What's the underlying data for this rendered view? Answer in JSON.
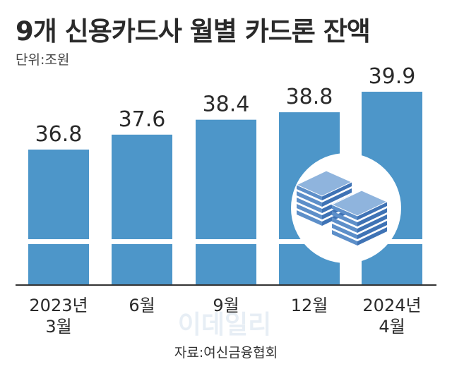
{
  "header": {
    "title": "9개 신용카드사 월별 카드론 잔액",
    "unit": "단위:조원"
  },
  "footer": {
    "source": "자료:여신금융협회",
    "watermark": "이데일리"
  },
  "colors": {
    "bar": "#4d96c9",
    "baseline": "#333333",
    "icon_circle": "#ffffff",
    "icon_paper": "#8fb4dd"
  },
  "icons": {
    "illustration": "money-stack-icon"
  },
  "chart_data": {
    "type": "bar",
    "categories": [
      [
        "2023년",
        "3월"
      ],
      [
        "6월"
      ],
      [
        "9월"
      ],
      [
        "12월"
      ],
      [
        "2024년",
        "4월"
      ]
    ],
    "values": [
      36.8,
      37.6,
      38.4,
      38.8,
      39.9
    ],
    "value_labels": [
      "36.8",
      "37.6",
      "38.4",
      "38.8",
      "39.9"
    ],
    "title": "9개 신용카드사 월별 카드론 잔액",
    "xlabel": "",
    "ylabel": "",
    "grid": false,
    "legend": "none",
    "axis_break": true
  }
}
